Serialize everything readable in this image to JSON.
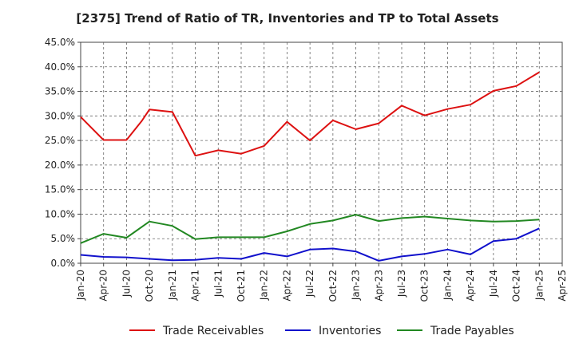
{
  "chart_data": {
    "type": "line",
    "title": "[2375]  Trend of Ratio of TR, Inventories and TP to Total Assets",
    "xlabel": "",
    "ylabel": "",
    "x_tick_labels": [
      "Jan-20",
      "Apr-20",
      "Jul-20",
      "Oct-20",
      "Jan-21",
      "Apr-21",
      "Jul-21",
      "Oct-21",
      "Jan-22",
      "Apr-22",
      "Jul-22",
      "Oct-22",
      "Jan-23",
      "Apr-23",
      "Jul-23",
      "Oct-23",
      "Jan-24",
      "Apr-24",
      "Jul-24",
      "Oct-24",
      "Jan-25",
      "Apr-25"
    ],
    "y_tick_labels": [
      "0.0%",
      "5.0%",
      "10.0%",
      "15.0%",
      "20.0%",
      "25.0%",
      "30.0%",
      "35.0%",
      "40.0%",
      "45.0%"
    ],
    "ylim": [
      0,
      45
    ],
    "grid": true,
    "legend_position": "bottom",
    "series": [
      {
        "name": "Trade Receivables",
        "color": "#dd1111",
        "x": [
          "Jan-20",
          "Apr-20",
          "Jul-20",
          "Sep-20",
          "Oct-20",
          "Jan-21",
          "Apr-21",
          "Jul-21",
          "Oct-21",
          "Jan-22",
          "Apr-22",
          "Jul-22",
          "Oct-22",
          "Jan-23",
          "Apr-23",
          "Jul-23",
          "Oct-23",
          "Jan-24",
          "Apr-24",
          "Jul-24",
          "Oct-24",
          "Jan-25"
        ],
        "values": [
          29.8,
          25.1,
          25.1,
          29.0,
          31.3,
          30.8,
          21.9,
          23.0,
          22.3,
          23.9,
          28.8,
          25.0,
          29.1,
          27.3,
          28.5,
          32.1,
          30.1,
          31.4,
          32.3,
          35.1,
          36.1,
          38.9
        ]
      },
      {
        "name": "Inventories",
        "color": "#1111cc",
        "x": [
          "Jan-20",
          "Apr-20",
          "Jul-20",
          "Oct-20",
          "Jan-21",
          "Apr-21",
          "Jul-21",
          "Oct-21",
          "Jan-22",
          "Apr-22",
          "Jul-22",
          "Oct-22",
          "Jan-23",
          "Apr-23",
          "Jul-23",
          "Oct-23",
          "Jan-24",
          "Apr-24",
          "Jul-24",
          "Oct-24",
          "Jan-25"
        ],
        "values": [
          1.7,
          1.3,
          1.2,
          0.9,
          0.6,
          0.7,
          1.1,
          0.9,
          2.1,
          1.4,
          2.8,
          3.0,
          2.4,
          0.5,
          1.4,
          1.9,
          2.8,
          1.8,
          4.5,
          5.0,
          7.1
        ]
      },
      {
        "name": "Trade Payables",
        "color": "#228822",
        "x": [
          "Jan-20",
          "Apr-20",
          "Jul-20",
          "Oct-20",
          "Jan-21",
          "Apr-21",
          "Jul-21",
          "Oct-21",
          "Jan-22",
          "Apr-22",
          "Jul-22",
          "Oct-22",
          "Jan-23",
          "Apr-23",
          "Jul-23",
          "Oct-23",
          "Jan-24",
          "Apr-24",
          "Jul-24",
          "Oct-24",
          "Jan-25"
        ],
        "values": [
          4.1,
          6.0,
          5.2,
          8.5,
          7.6,
          4.9,
          5.3,
          5.3,
          5.3,
          6.5,
          8.0,
          8.7,
          9.9,
          8.6,
          9.2,
          9.5,
          9.1,
          8.7,
          8.5,
          8.6,
          8.9
        ]
      }
    ]
  }
}
